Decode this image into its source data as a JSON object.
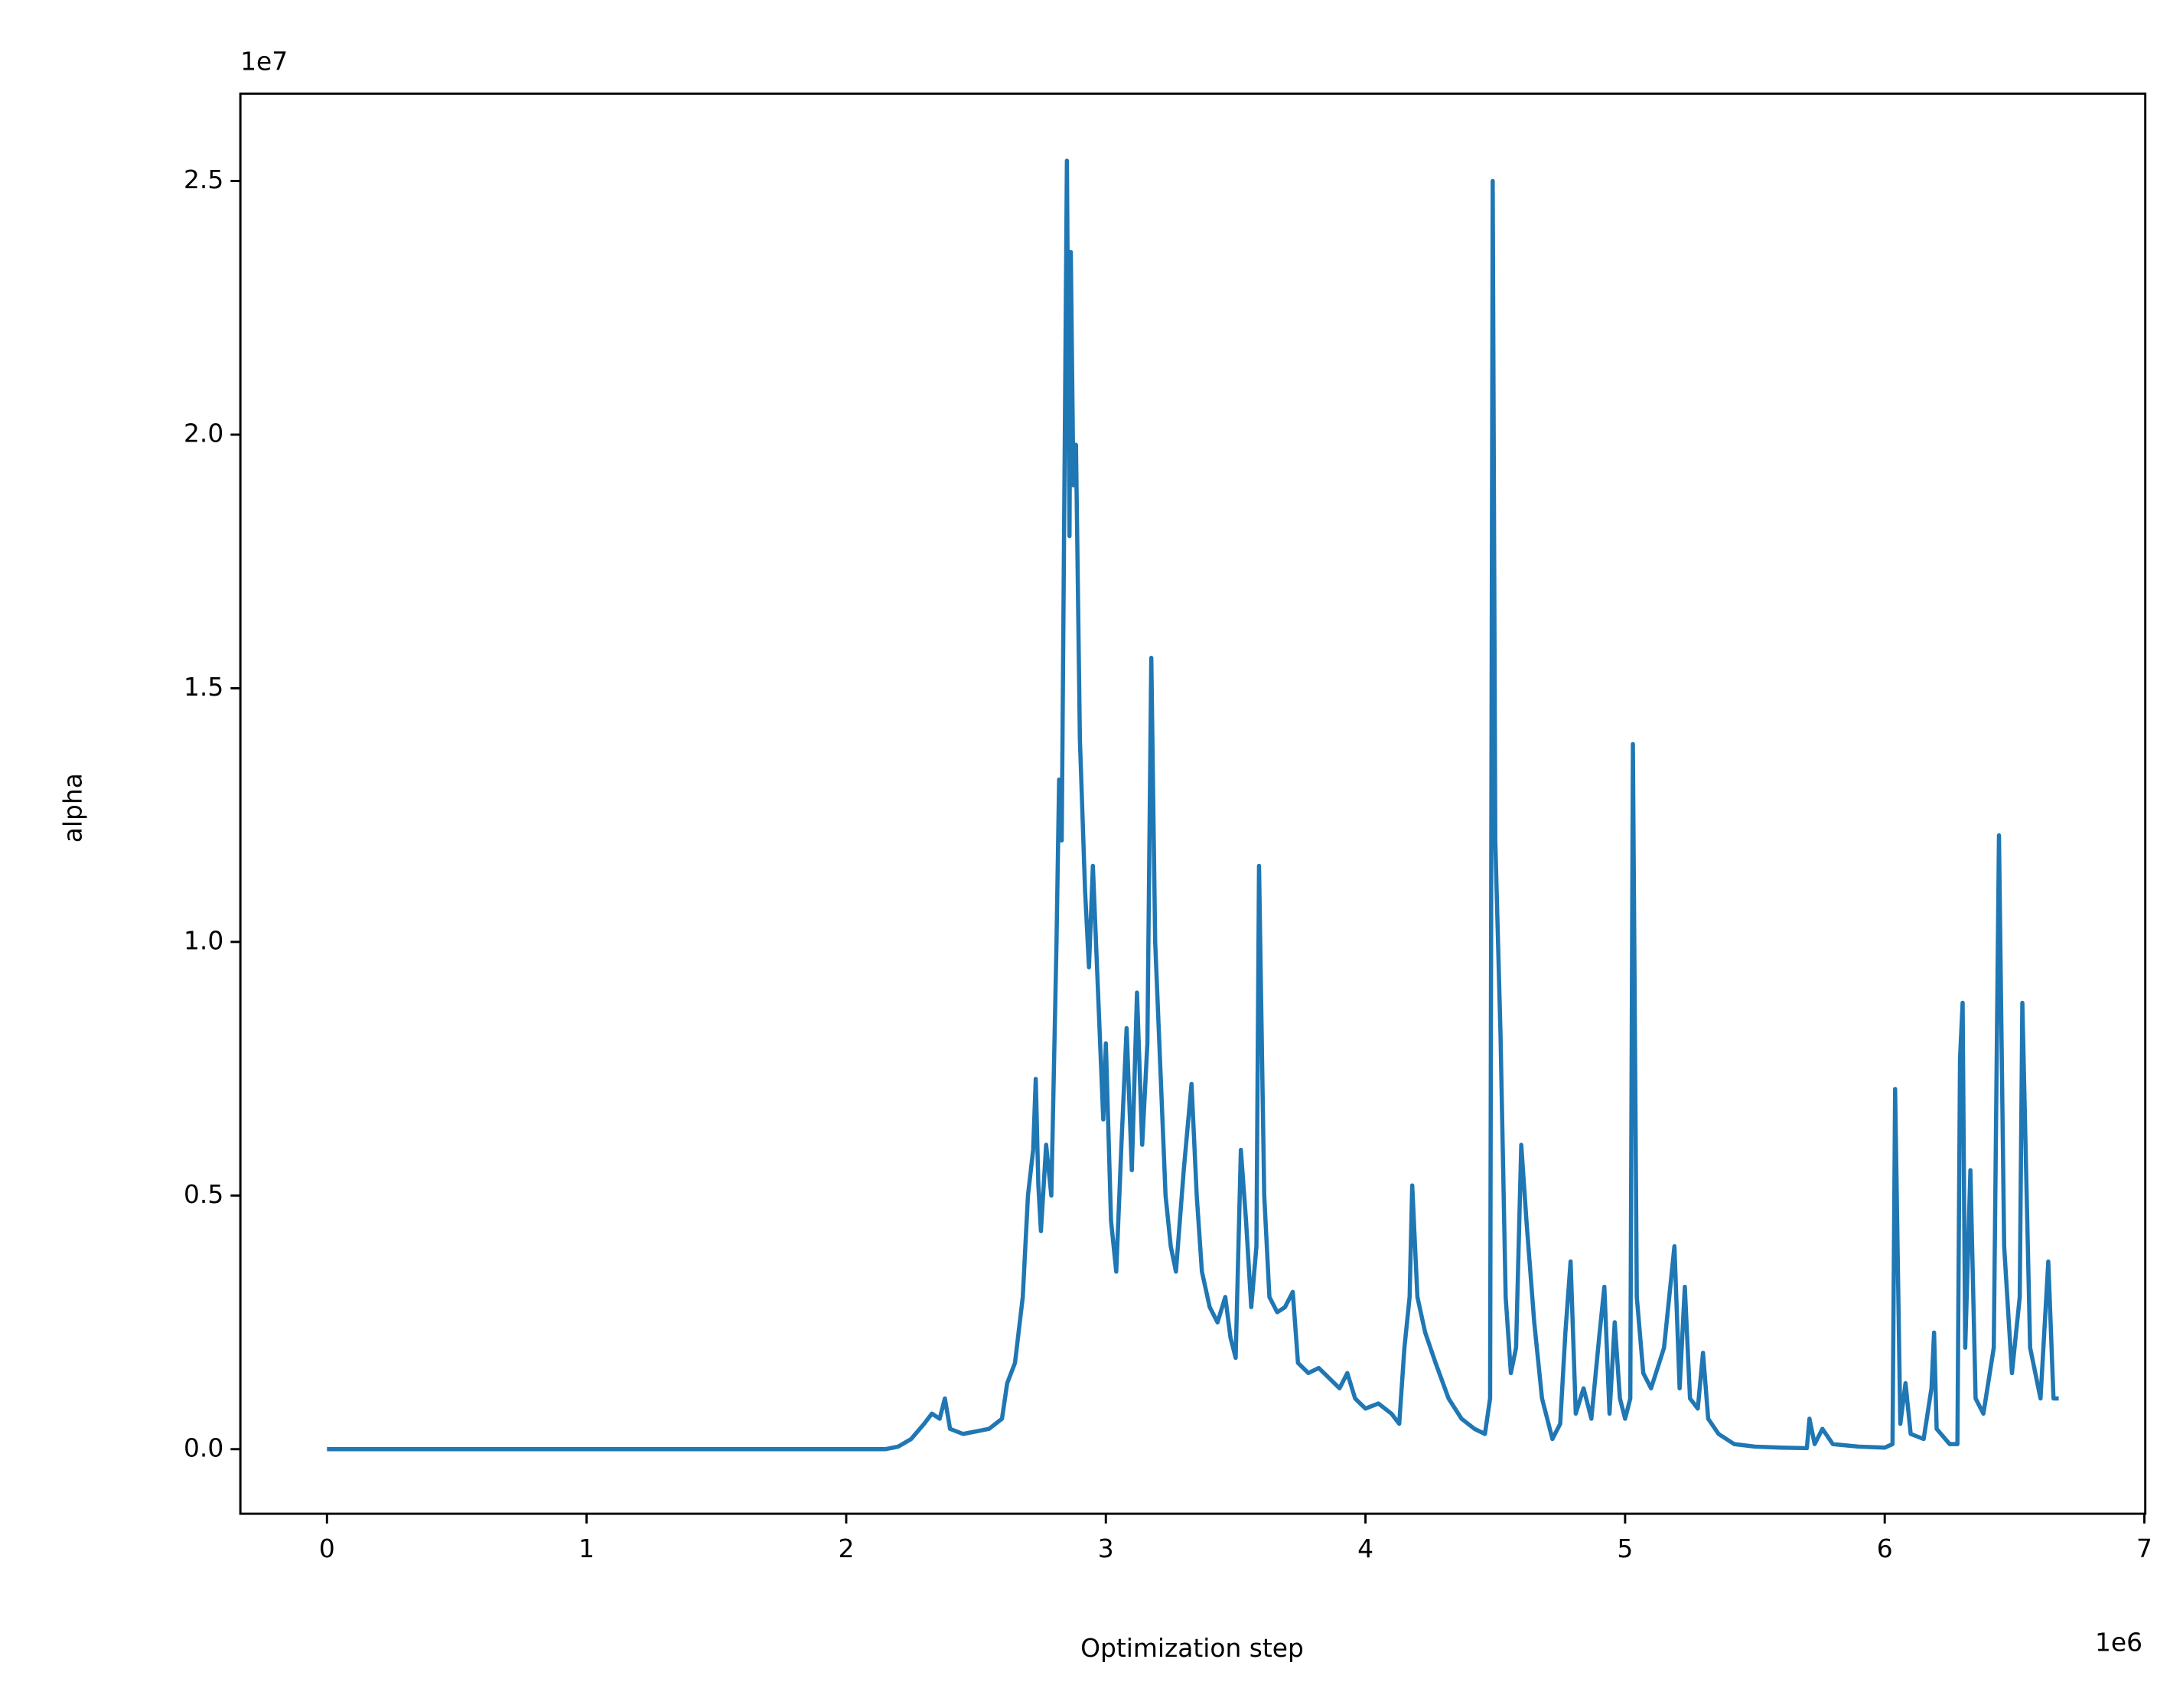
{
  "chart_data": {
    "type": "line",
    "x_label": "Optimization step",
    "y_label": "alpha",
    "x_offset_text": "1e6",
    "y_offset_text": "1e7",
    "xlim": [
      -333500,
      7003500
    ],
    "ylim": [
      -1272500,
      26722500
    ],
    "xticks": [
      {
        "value": 0,
        "label": "0"
      },
      {
        "value": 1000000,
        "label": "1"
      },
      {
        "value": 2000000,
        "label": "2"
      },
      {
        "value": 3000000,
        "label": "3"
      },
      {
        "value": 4000000,
        "label": "4"
      },
      {
        "value": 5000000,
        "label": "5"
      },
      {
        "value": 6000000,
        "label": "6"
      },
      {
        "value": 7000000,
        "label": "7"
      }
    ],
    "yticks": [
      {
        "value": 0,
        "label": "0.0"
      },
      {
        "value": 5000000,
        "label": "0.5"
      },
      {
        "value": 10000000,
        "label": "1.0"
      },
      {
        "value": 15000000,
        "label": "1.5"
      },
      {
        "value": 20000000,
        "label": "2.0"
      },
      {
        "value": 25000000,
        "label": "2.5"
      }
    ],
    "grid": false,
    "x": [
      0,
      2150000,
      2200000,
      2250000,
      2300000,
      2330000,
      2360000,
      2380000,
      2400000,
      2450000,
      2500000,
      2550000,
      2600000,
      2620000,
      2650000,
      2680000,
      2700000,
      2720000,
      2730000,
      2740000,
      2750000,
      2770000,
      2790000,
      2810000,
      2820000,
      2830000,
      2845000,
      2850000,
      2860000,
      2865000,
      2875000,
      2885000,
      2900000,
      2920000,
      2935000,
      2950000,
      2970000,
      2990000,
      3000000,
      3020000,
      3040000,
      3060000,
      3080000,
      3100000,
      3120000,
      3140000,
      3160000,
      3175000,
      3190000,
      3210000,
      3230000,
      3250000,
      3270000,
      3300000,
      3330000,
      3350000,
      3370000,
      3400000,
      3430000,
      3460000,
      3480000,
      3500000,
      3520000,
      3540000,
      3560000,
      3580000,
      3590000,
      3610000,
      3630000,
      3660000,
      3690000,
      3720000,
      3740000,
      3780000,
      3820000,
      3860000,
      3900000,
      3930000,
      3960000,
      4000000,
      4050000,
      4100000,
      4130000,
      4150000,
      4170000,
      4180000,
      4200000,
      4230000,
      4270000,
      4320000,
      4370000,
      4420000,
      4460000,
      4480000,
      4490000,
      4500000,
      4520000,
      4540000,
      4560000,
      4580000,
      4600000,
      4620000,
      4650000,
      4680000,
      4720000,
      4750000,
      4770000,
      4790000,
      4810000,
      4840000,
      4870000,
      4900000,
      4920000,
      4940000,
      4960000,
      4980000,
      5000000,
      5020000,
      5030000,
      5045000,
      5070000,
      5100000,
      5150000,
      5190000,
      5210000,
      5230000,
      5250000,
      5280000,
      5300000,
      5320000,
      5360000,
      5420000,
      5500000,
      5600000,
      5700000,
      5710000,
      5730000,
      5760000,
      5800000,
      5900000,
      6000000,
      6030000,
      6040000,
      6060000,
      6080000,
      6100000,
      6150000,
      6180000,
      6190000,
      6200000,
      6250000,
      6280000,
      6290000,
      6300000,
      6310000,
      6330000,
      6350000,
      6380000,
      6420000,
      6440000,
      6460000,
      6490000,
      6520000,
      6530000,
      6560000,
      6600000,
      6630000,
      6650000,
      6670000
    ],
    "series": [
      {
        "name": "alpha",
        "color": "#1f77b4",
        "values": [
          0,
          0,
          50000,
          200000,
          500000,
          700000,
          600000,
          1000000,
          400000,
          300000,
          350000,
          400000,
          600000,
          1300000,
          1700000,
          3000000,
          5000000,
          5900000,
          7300000,
          5200000,
          4300000,
          6000000,
          5000000,
          10000000,
          13200000,
          12000000,
          22000000,
          25400000,
          18000000,
          23600000,
          19000000,
          19800000,
          14000000,
          11000000,
          9500000,
          11500000,
          9000000,
          6500000,
          8000000,
          4500000,
          3500000,
          6000000,
          8300000,
          5500000,
          9000000,
          6000000,
          8000000,
          15600000,
          10000000,
          7500000,
          5000000,
          4000000,
          3500000,
          5500000,
          7200000,
          5000000,
          3500000,
          2800000,
          2500000,
          3000000,
          2200000,
          1800000,
          5900000,
          4500000,
          2800000,
          4000000,
          11500000,
          5000000,
          3000000,
          2700000,
          2800000,
          3100000,
          1700000,
          1500000,
          1600000,
          1400000,
          1200000,
          1500000,
          1000000,
          800000,
          900000,
          700000,
          500000,
          2000000,
          3000000,
          5200000,
          3000000,
          2300000,
          1700000,
          1000000,
          600000,
          400000,
          300000,
          1000000,
          25000000,
          12000000,
          8200000,
          3000000,
          1500000,
          2000000,
          6000000,
          4500000,
          2500000,
          1000000,
          200000,
          500000,
          2300000,
          3700000,
          700000,
          1200000,
          600000,
          2200000,
          3200000,
          700000,
          2500000,
          1000000,
          600000,
          1000000,
          13900000,
          3000000,
          1500000,
          1200000,
          2000000,
          4000000,
          1200000,
          3200000,
          1000000,
          800000,
          1900000,
          600000,
          300000,
          100000,
          50000,
          30000,
          20000,
          600000,
          100000,
          400000,
          100000,
          50000,
          30000,
          100000,
          7100000,
          500000,
          1300000,
          300000,
          200000,
          1200000,
          2300000,
          400000,
          100000,
          100000,
          7700000,
          8800000,
          2000000,
          5500000,
          1000000,
          700000,
          2000000,
          12100000,
          4000000,
          1500000,
          3000000,
          8800000,
          2000000,
          1000000,
          3700000,
          1000000,
          1000000
        ]
      }
    ]
  }
}
